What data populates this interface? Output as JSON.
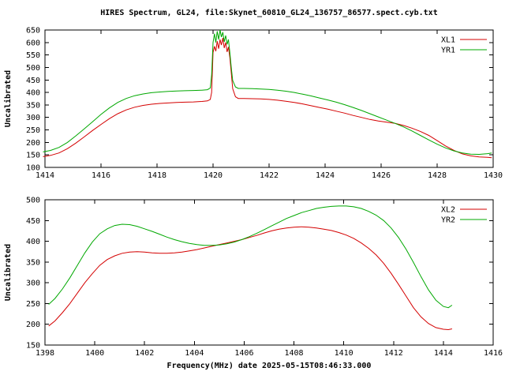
{
  "title": "HIRES Spectrum, GL24, file:Skynet_60810_GL24_136757_86577.spect.cyb.txt",
  "xlabel": "Frequency(MHz) date 2025-05-15T08:46:33.000",
  "colors": {
    "series_red": "#d40000",
    "series_green": "#00a800",
    "axis": "#000000",
    "background": "#ffffff"
  },
  "chart_data": [
    {
      "type": "line",
      "ylabel": "Uncalibrated",
      "xlim": [
        1414,
        1430
      ],
      "ylim": [
        100,
        650
      ],
      "xticks": [
        1414,
        1416,
        1418,
        1420,
        1422,
        1424,
        1426,
        1428,
        1430
      ],
      "yticks": [
        100,
        150,
        200,
        250,
        300,
        350,
        400,
        450,
        500,
        550,
        600,
        650
      ],
      "grid": false,
      "legend_position": "top-right",
      "series": [
        {
          "name": "XL1",
          "color": "#d40000",
          "x": [
            1413.93,
            1414.2,
            1414.5,
            1414.8,
            1415.1,
            1415.4,
            1415.7,
            1416.0,
            1416.3,
            1416.6,
            1416.9,
            1417.2,
            1417.5,
            1417.8,
            1418.1,
            1418.4,
            1418.7,
            1419.0,
            1419.3,
            1419.6,
            1419.8,
            1419.9,
            1419.95,
            1420.0,
            1420.05,
            1420.1,
            1420.15,
            1420.2,
            1420.25,
            1420.3,
            1420.35,
            1420.4,
            1420.45,
            1420.5,
            1420.55,
            1420.6,
            1420.65,
            1420.7,
            1420.8,
            1420.9,
            1421.1,
            1421.4,
            1421.7,
            1422.0,
            1422.3,
            1422.6,
            1422.9,
            1423.2,
            1423.5,
            1423.8,
            1424.1,
            1424.4,
            1424.7,
            1425.0,
            1425.3,
            1425.6,
            1425.9,
            1426.2,
            1426.5,
            1426.8,
            1427.1,
            1427.4,
            1427.7,
            1428.0,
            1428.3,
            1428.6,
            1428.9,
            1429.2,
            1429.5,
            1429.8,
            1429.95
          ],
          "y": [
            143,
            148,
            158,
            175,
            197,
            222,
            248,
            272,
            295,
            315,
            330,
            341,
            348,
            353,
            356,
            358,
            360,
            361,
            362,
            364,
            366,
            372,
            400,
            560,
            585,
            565,
            605,
            575,
            612,
            590,
            618,
            578,
            600,
            562,
            582,
            540,
            478,
            415,
            383,
            376,
            376,
            375,
            374,
            372,
            369,
            365,
            360,
            354,
            347,
            340,
            333,
            325,
            317,
            308,
            300,
            292,
            286,
            281,
            276,
            268,
            257,
            244,
            228,
            207,
            186,
            168,
            154,
            146,
            142,
            140,
            139
          ]
        },
        {
          "name": "YR1",
          "color": "#00a800",
          "x": [
            1413.93,
            1414.2,
            1414.5,
            1414.8,
            1415.1,
            1415.4,
            1415.7,
            1416.0,
            1416.3,
            1416.6,
            1416.9,
            1417.2,
            1417.5,
            1417.8,
            1418.1,
            1418.4,
            1418.7,
            1419.0,
            1419.3,
            1419.6,
            1419.8,
            1419.9,
            1419.95,
            1420.0,
            1420.05,
            1420.1,
            1420.15,
            1420.2,
            1420.25,
            1420.3,
            1420.35,
            1420.4,
            1420.45,
            1420.5,
            1420.55,
            1420.6,
            1420.65,
            1420.7,
            1420.8,
            1420.9,
            1421.1,
            1421.4,
            1421.7,
            1422.0,
            1422.3,
            1422.6,
            1422.9,
            1423.2,
            1423.5,
            1423.8,
            1424.1,
            1424.4,
            1424.7,
            1425.0,
            1425.3,
            1425.6,
            1425.9,
            1426.2,
            1426.5,
            1426.8,
            1427.1,
            1427.4,
            1427.7,
            1428.0,
            1428.3,
            1428.6,
            1428.9,
            1429.2,
            1429.5,
            1429.8,
            1429.95
          ],
          "y": [
            162,
            168,
            180,
            200,
            226,
            254,
            283,
            312,
            338,
            360,
            376,
            387,
            394,
            399,
            402,
            404,
            406,
            407,
            408,
            409,
            411,
            418,
            470,
            600,
            635,
            600,
            645,
            612,
            650,
            622,
            641,
            603,
            628,
            592,
            612,
            560,
            500,
            448,
            422,
            416,
            416,
            415,
            414,
            412,
            409,
            405,
            400,
            393,
            386,
            378,
            370,
            361,
            351,
            340,
            328,
            315,
            302,
            289,
            276,
            262,
            246,
            228,
            210,
            193,
            178,
            166,
            158,
            153,
            152,
            155,
            158
          ]
        }
      ]
    },
    {
      "type": "line",
      "ylabel": "Uncalibrated",
      "xlim": [
        1398,
        1416
      ],
      "ylim": [
        150,
        500
      ],
      "xticks": [
        1398,
        1400,
        1402,
        1404,
        1406,
        1408,
        1410,
        1412,
        1414,
        1416
      ],
      "yticks": [
        150,
        200,
        250,
        300,
        350,
        400,
        450,
        500
      ],
      "grid": false,
      "legend_position": "top-right",
      "series": [
        {
          "name": "XL2",
          "color": "#d40000",
          "x": [
            1398.15,
            1398.4,
            1398.7,
            1399.0,
            1399.3,
            1399.6,
            1399.9,
            1400.2,
            1400.5,
            1400.8,
            1401.1,
            1401.4,
            1401.7,
            1402.0,
            1402.3,
            1402.6,
            1402.9,
            1403.2,
            1403.5,
            1403.8,
            1404.1,
            1404.4,
            1404.7,
            1405.0,
            1405.3,
            1405.6,
            1405.9,
            1406.2,
            1406.5,
            1406.8,
            1407.1,
            1407.4,
            1407.7,
            1408.0,
            1408.3,
            1408.6,
            1408.9,
            1409.2,
            1409.5,
            1409.8,
            1410.1,
            1410.4,
            1410.7,
            1411.0,
            1411.3,
            1411.6,
            1411.9,
            1412.2,
            1412.5,
            1412.8,
            1413.1,
            1413.4,
            1413.7,
            1414.0,
            1414.2,
            1414.35
          ],
          "y": [
            196,
            208,
            228,
            250,
            275,
            300,
            322,
            342,
            356,
            365,
            371,
            374,
            375,
            374,
            372,
            371,
            371,
            372,
            374,
            377,
            380,
            384,
            388,
            392,
            396,
            400,
            404,
            409,
            414,
            420,
            425,
            429,
            432,
            434,
            435,
            434,
            432,
            429,
            426,
            421,
            415,
            407,
            396,
            383,
            367,
            347,
            323,
            296,
            268,
            240,
            218,
            202,
            192,
            188,
            187,
            189
          ]
        },
        {
          "name": "YR2",
          "color": "#00a800",
          "x": [
            1398.15,
            1398.4,
            1398.7,
            1399.0,
            1399.3,
            1399.6,
            1399.9,
            1400.2,
            1400.5,
            1400.8,
            1401.1,
            1401.4,
            1401.7,
            1402.0,
            1402.3,
            1402.6,
            1402.9,
            1403.2,
            1403.5,
            1403.8,
            1404.1,
            1404.4,
            1404.7,
            1405.0,
            1405.3,
            1405.6,
            1405.9,
            1406.2,
            1406.5,
            1406.8,
            1407.1,
            1407.4,
            1407.7,
            1408.0,
            1408.3,
            1408.6,
            1408.9,
            1409.2,
            1409.5,
            1409.8,
            1410.1,
            1410.4,
            1410.7,
            1411.0,
            1411.3,
            1411.6,
            1411.9,
            1412.2,
            1412.5,
            1412.8,
            1413.1,
            1413.4,
            1413.7,
            1414.0,
            1414.2,
            1414.35
          ],
          "y": [
            248,
            262,
            285,
            312,
            342,
            372,
            398,
            418,
            430,
            438,
            441,
            440,
            436,
            430,
            424,
            417,
            410,
            404,
            399,
            395,
            392,
            390,
            390,
            391,
            394,
            398,
            404,
            411,
            419,
            428,
            437,
            446,
            455,
            462,
            469,
            474,
            479,
            482,
            484,
            485,
            485,
            483,
            479,
            472,
            463,
            450,
            432,
            409,
            381,
            349,
            315,
            283,
            258,
            243,
            240,
            246
          ]
        }
      ]
    }
  ]
}
